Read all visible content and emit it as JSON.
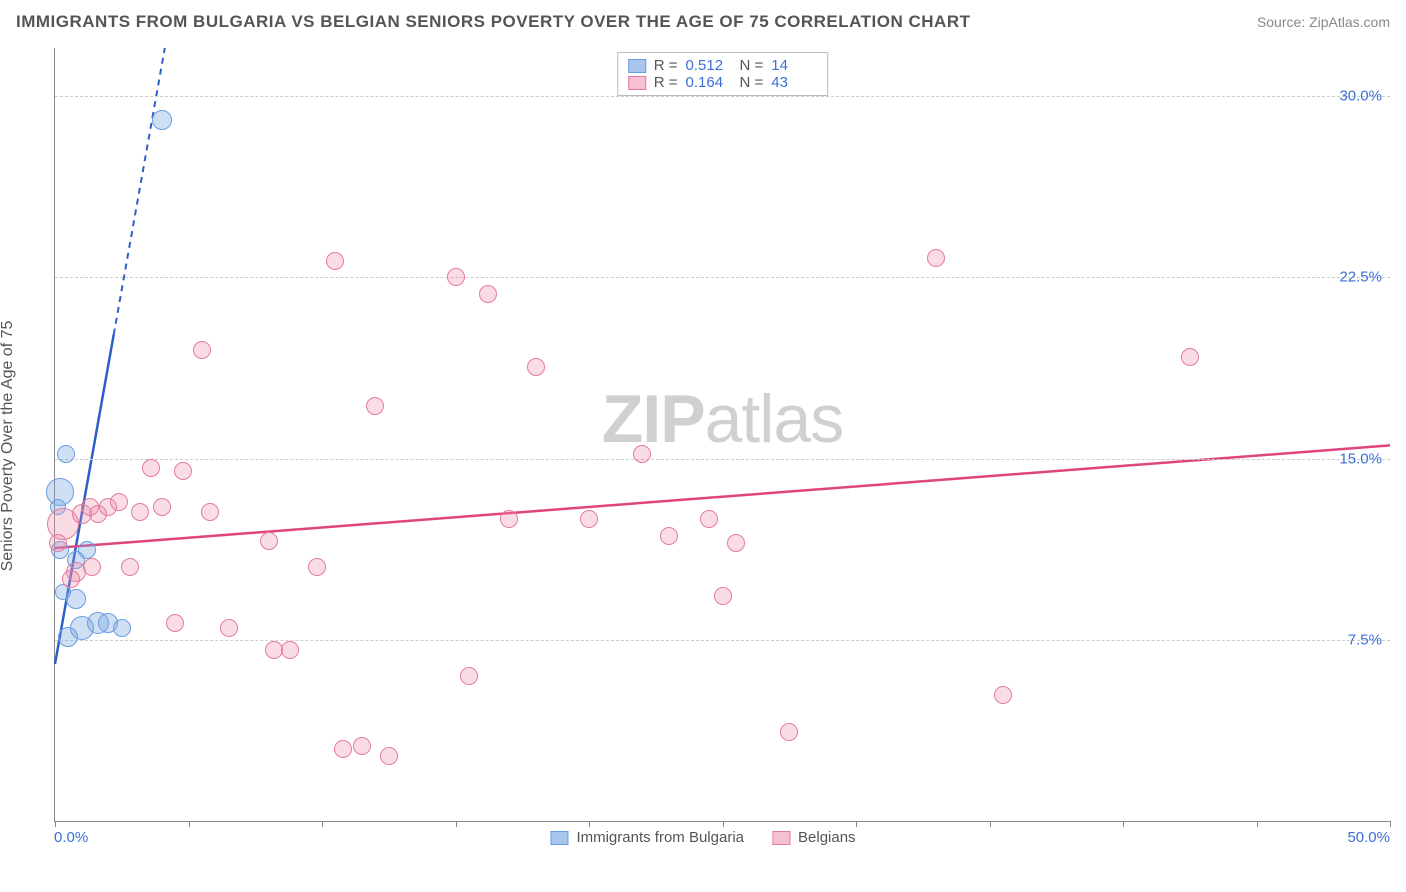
{
  "title": "IMMIGRANTS FROM BULGARIA VS BELGIAN SENIORS POVERTY OVER THE AGE OF 75 CORRELATION CHART",
  "source": "Source: ZipAtlas.com",
  "watermark_bold": "ZIP",
  "watermark_thin": "atlas",
  "ylabel": "Seniors Poverty Over the Age of 75",
  "chart": {
    "type": "scatter",
    "xlim": [
      0,
      50
    ],
    "ylim": [
      0,
      32
    ],
    "xticks": [
      0,
      5,
      10,
      15,
      20,
      25,
      30,
      35,
      40,
      45,
      50
    ],
    "yticks": [
      7.5,
      15.0,
      22.5,
      30.0
    ],
    "ytick_labels": [
      "7.5%",
      "15.0%",
      "22.5%",
      "30.0%"
    ],
    "x_left_label": "0.0%",
    "x_right_label": "50.0%",
    "background_color": "#ffffff",
    "grid_color": "#cccccc",
    "axis_color": "#888888",
    "label_color": "#3b6fd6",
    "series": [
      {
        "name": "Immigrants from Bulgaria",
        "color_fill": "rgba(118,164,224,0.35)",
        "color_stroke": "#6a9de0",
        "swatch_fill": "#a9c6ee",
        "swatch_stroke": "#6a9de0",
        "R": "0.512",
        "N": "14",
        "trend": {
          "slope": 6.2,
          "intercept": 6.5,
          "color": "#2e5fc9",
          "solid_x_end": 2.2
        },
        "points": [
          {
            "x": 0.2,
            "y": 13.6,
            "r": 14
          },
          {
            "x": 0.4,
            "y": 15.2,
            "r": 9
          },
          {
            "x": 0.2,
            "y": 11.2,
            "r": 9
          },
          {
            "x": 0.8,
            "y": 9.2,
            "r": 10
          },
          {
            "x": 1.0,
            "y": 8.0,
            "r": 12
          },
          {
            "x": 1.6,
            "y": 8.2,
            "r": 11
          },
          {
            "x": 2.0,
            "y": 8.2,
            "r": 10
          },
          {
            "x": 2.5,
            "y": 8.0,
            "r": 9
          },
          {
            "x": 0.5,
            "y": 7.6,
            "r": 10
          },
          {
            "x": 0.8,
            "y": 10.8,
            "r": 9
          },
          {
            "x": 1.2,
            "y": 11.2,
            "r": 9
          },
          {
            "x": 4.0,
            "y": 29.0,
            "r": 10
          },
          {
            "x": 0.1,
            "y": 13.0,
            "r": 8
          },
          {
            "x": 0.3,
            "y": 9.5,
            "r": 8
          }
        ]
      },
      {
        "name": "Belgians",
        "color_fill": "rgba(238,140,170,0.30)",
        "color_stroke": "#e37ba0",
        "swatch_fill": "#f5c1d2",
        "swatch_stroke": "#e37ba0",
        "R": "0.164",
        "N": "43",
        "trend": {
          "slope": 0.085,
          "intercept": 11.3,
          "color": "#e0447d",
          "solid_x_end": 50
        },
        "points": [
          {
            "x": 0.3,
            "y": 12.3,
            "r": 16
          },
          {
            "x": 1.0,
            "y": 12.7,
            "r": 10
          },
          {
            "x": 1.3,
            "y": 13.0,
            "r": 9
          },
          {
            "x": 1.6,
            "y": 12.7,
            "r": 9
          },
          {
            "x": 2.0,
            "y": 13.0,
            "r": 9
          },
          {
            "x": 2.4,
            "y": 13.2,
            "r": 9
          },
          {
            "x": 0.8,
            "y": 10.3,
            "r": 10
          },
          {
            "x": 0.6,
            "y": 10.0,
            "r": 9
          },
          {
            "x": 1.4,
            "y": 10.5,
            "r": 9
          },
          {
            "x": 2.8,
            "y": 10.5,
            "r": 9
          },
          {
            "x": 3.2,
            "y": 12.8,
            "r": 9
          },
          {
            "x": 3.6,
            "y": 14.6,
            "r": 9
          },
          {
            "x": 4.0,
            "y": 13.0,
            "r": 9
          },
          {
            "x": 4.8,
            "y": 14.5,
            "r": 9
          },
          {
            "x": 5.5,
            "y": 19.5,
            "r": 9
          },
          {
            "x": 5.8,
            "y": 12.8,
            "r": 9
          },
          {
            "x": 6.5,
            "y": 8.0,
            "r": 9
          },
          {
            "x": 8.0,
            "y": 11.6,
            "r": 9
          },
          {
            "x": 8.2,
            "y": 7.1,
            "r": 9
          },
          {
            "x": 8.8,
            "y": 7.1,
            "r": 9
          },
          {
            "x": 9.8,
            "y": 10.5,
            "r": 9
          },
          {
            "x": 10.5,
            "y": 23.2,
            "r": 9
          },
          {
            "x": 10.8,
            "y": 3.0,
            "r": 9
          },
          {
            "x": 11.5,
            "y": 3.1,
            "r": 9
          },
          {
            "x": 12.0,
            "y": 17.2,
            "r": 9
          },
          {
            "x": 12.5,
            "y": 2.7,
            "r": 9
          },
          {
            "x": 15.0,
            "y": 22.5,
            "r": 9
          },
          {
            "x": 15.5,
            "y": 6.0,
            "r": 9
          },
          {
            "x": 16.2,
            "y": 21.8,
            "r": 9
          },
          {
            "x": 17.0,
            "y": 12.5,
            "r": 9
          },
          {
            "x": 18.0,
            "y": 18.8,
            "r": 9
          },
          {
            "x": 20.0,
            "y": 12.5,
            "r": 9
          },
          {
            "x": 22.0,
            "y": 15.2,
            "r": 9
          },
          {
            "x": 23.0,
            "y": 11.8,
            "r": 9
          },
          {
            "x": 24.5,
            "y": 12.5,
            "r": 9
          },
          {
            "x": 25.5,
            "y": 11.5,
            "r": 9
          },
          {
            "x": 25.0,
            "y": 9.3,
            "r": 9
          },
          {
            "x": 27.5,
            "y": 3.7,
            "r": 9
          },
          {
            "x": 33.0,
            "y": 23.3,
            "r": 9
          },
          {
            "x": 35.5,
            "y": 5.2,
            "r": 9
          },
          {
            "x": 42.5,
            "y": 19.2,
            "r": 9
          },
          {
            "x": 4.5,
            "y": 8.2,
            "r": 9
          },
          {
            "x": 0.1,
            "y": 11.5,
            "r": 9
          }
        ]
      }
    ]
  },
  "legend_top_labels": {
    "R": "R =",
    "N": "N ="
  },
  "legend_bottom": [
    {
      "series_index": 0
    },
    {
      "series_index": 1
    }
  ]
}
